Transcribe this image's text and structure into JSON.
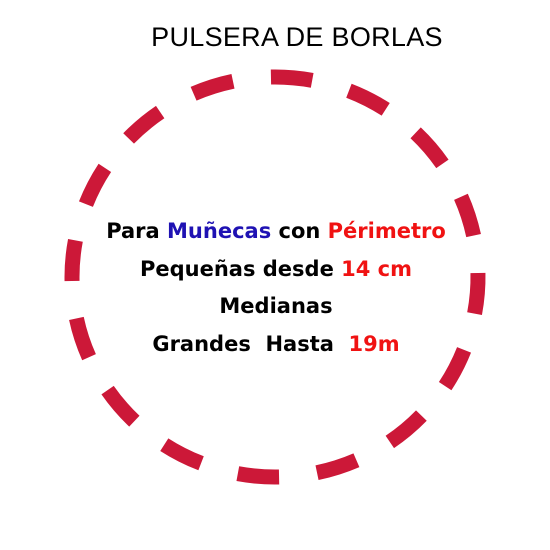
{
  "title": "PULSERA DE BORLAS",
  "colors": {
    "ring": "#cc1838",
    "accent_blue": "#1f12b3",
    "accent_red": "#f01212",
    "text": "#000000"
  },
  "lines": [
    {
      "segments": [
        {
          "text": "Para ",
          "color": "#000000"
        },
        {
          "text": "Muñecas",
          "color": "#1f12b3"
        },
        {
          "text": " con ",
          "color": "#000000"
        },
        {
          "text": "Périmetro",
          "color": "#f01212"
        }
      ]
    },
    {
      "segments": [
        {
          "text": "Pequeñas desde ",
          "color": "#000000"
        },
        {
          "text": "14 cm",
          "color": "#f01212"
        }
      ]
    },
    {
      "segments": [
        {
          "text": "Medianas",
          "color": "#000000"
        }
      ]
    },
    {
      "segments": [
        {
          "text": "Grandes  Hasta  ",
          "color": "#000000"
        },
        {
          "text": "19m",
          "color": "#f01212"
        }
      ]
    }
  ]
}
